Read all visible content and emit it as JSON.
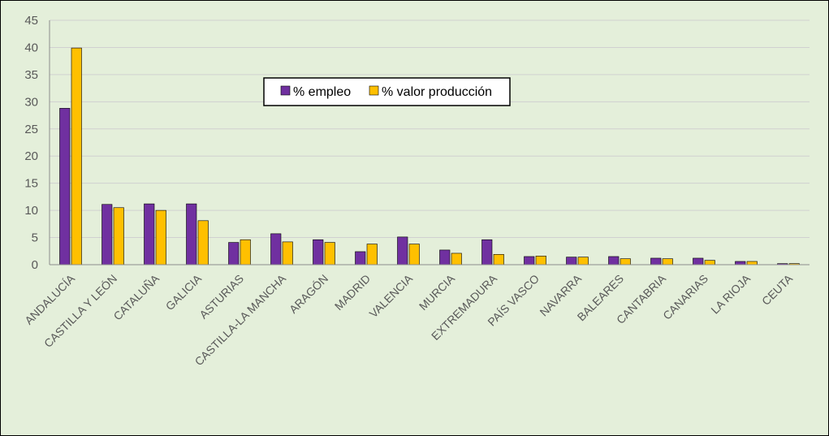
{
  "chart_data": {
    "type": "bar",
    "categories": [
      "ANDALUCÍA",
      "CASTILLA Y LEÓN",
      "CATALUÑA",
      "GALICIA",
      "ASTURIAS",
      "CASTILLA-LA MANCHA",
      "ARAGÓN",
      "MADRID",
      "VALENCIA",
      "MURCIA",
      "EXTREMADURA",
      "PAÍS VASCO",
      "NAVARRA",
      "BALEARES",
      "CANTABRIA",
      "CANARIAS",
      "LA RIOJA",
      "CEUTA"
    ],
    "series": [
      {
        "name": "% empleo",
        "color": "#7030a0",
        "values": [
          28.8,
          11.1,
          11.2,
          11.2,
          4.1,
          5.7,
          4.6,
          2.4,
          5.1,
          2.7,
          4.6,
          1.5,
          1.4,
          1.5,
          1.2,
          1.2,
          0.6,
          0.2
        ]
      },
      {
        "name": "% valor producción",
        "color": "#ffc000",
        "values": [
          39.9,
          10.5,
          10.0,
          8.1,
          4.6,
          4.2,
          4.1,
          3.8,
          3.8,
          2.1,
          1.9,
          1.6,
          1.4,
          1.1,
          1.1,
          0.8,
          0.6,
          0.2
        ]
      }
    ],
    "yticks": [
      0,
      5,
      10,
      15,
      20,
      25,
      30,
      35,
      40,
      45
    ],
    "ylim": [
      0,
      45
    ],
    "grid": true,
    "legend_position": "top-center"
  }
}
